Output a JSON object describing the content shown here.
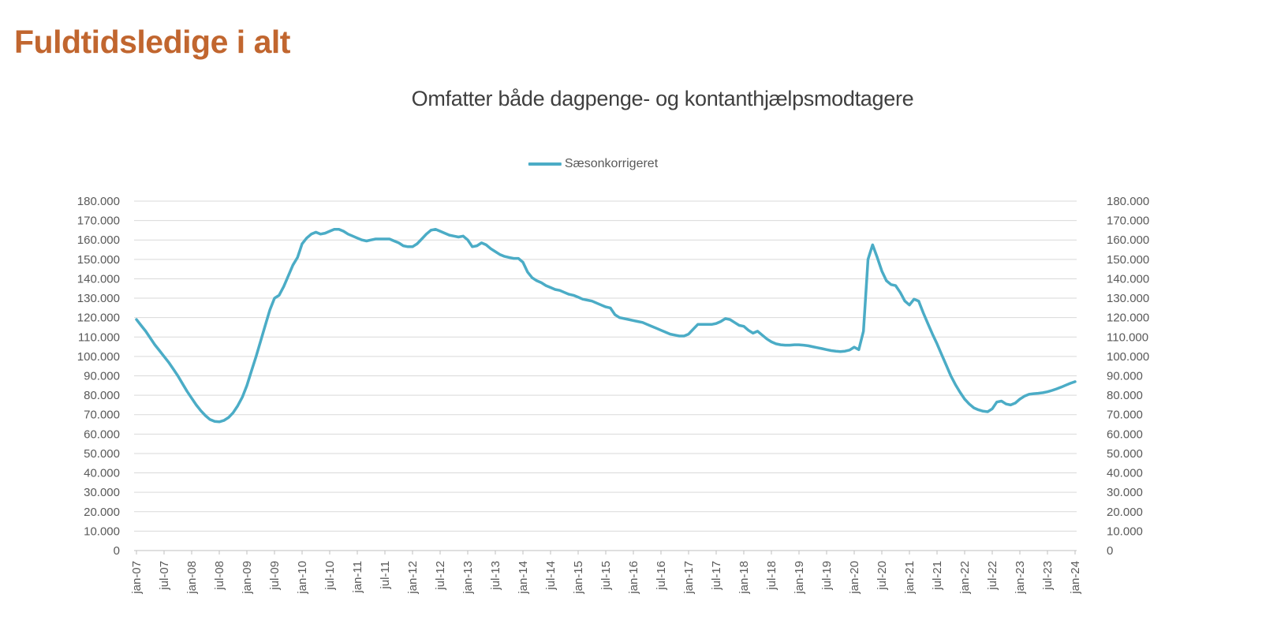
{
  "page": {
    "title": "Fuldtidsledige i alt"
  },
  "chart": {
    "subtitle": "Omfatter både dagpenge- og kontanthjælpsmodtagere",
    "legend_label": "Sæsonkorrigeret"
  },
  "colors": {
    "title": "#C1662F",
    "subtitle": "#3F3F3F",
    "series": "#4BACC6",
    "gridline": "#D9D9D9",
    "axis_line": "#BFBFBF",
    "tick_text": "#595959"
  },
  "chart_data": {
    "type": "line",
    "title": "Omfatter både dagpenge- og kontanthjælpsmodtagere",
    "grid": true,
    "legend_position": "top-center",
    "x_start": "jan-07",
    "x_end": "jan-24",
    "frequency": "monthly",
    "x_tick_every_months": 6,
    "x_tick_labels": [
      "jan-07",
      "jul-07",
      "jan-08",
      "jul-08",
      "jan-09",
      "jul-09",
      "jan-10",
      "jul-10",
      "jan-11",
      "jul-11",
      "jan-12",
      "jul-12",
      "jan-13",
      "jul-13",
      "jan-14",
      "jul-14",
      "jan-15",
      "jul-15",
      "jan-16",
      "jul-16",
      "jan-17",
      "jul-17",
      "jan-18",
      "jul-18",
      "jan-19",
      "jul-19",
      "jan-20",
      "jul-20",
      "jan-21",
      "jul-21",
      "jan-22",
      "jul-22",
      "jan-23",
      "jul-23",
      "jan-24"
    ],
    "y_axis": {
      "min": 0,
      "max": 180000,
      "step": 10000,
      "sides": [
        "left",
        "right"
      ],
      "tick_labels": [
        "180.000",
        "170.000",
        "160.000",
        "150.000",
        "140.000",
        "130.000",
        "120.000",
        "110.000",
        "100.000",
        "90.000",
        "80.000",
        "70.000",
        "60.000",
        "50.000",
        "40.000",
        "30.000",
        "20.000",
        "10.000",
        "0"
      ]
    },
    "series": [
      {
        "name": "Sæsonkorrigeret",
        "color": "#4BACC6",
        "values": [
          119000,
          116000,
          113000,
          109500,
          106000,
          103000,
          100000,
          97000,
          93500,
          90000,
          86000,
          82000,
          78500,
          75000,
          72000,
          69500,
          67500,
          66500,
          66300,
          67000,
          68500,
          71000,
          74500,
          79000,
          85000,
          92500,
          100000,
          108000,
          116000,
          124000,
          130000,
          131500,
          136000,
          141500,
          147000,
          151000,
          158000,
          161000,
          163000,
          164000,
          163000,
          163500,
          164500,
          165500,
          165500,
          164500,
          163000,
          162000,
          161000,
          160000,
          159500,
          160000,
          160500,
          160500,
          160500,
          160500,
          159500,
          158500,
          157000,
          156500,
          156500,
          158000,
          160500,
          163000,
          165000,
          165500,
          164500,
          163500,
          162500,
          162000,
          161500,
          162000,
          160000,
          156500,
          157000,
          158500,
          157500,
          155500,
          154000,
          152500,
          151500,
          151000,
          150500,
          150500,
          148500,
          143500,
          140500,
          139000,
          138000,
          136500,
          135500,
          134500,
          134000,
          133000,
          132000,
          131500,
          130500,
          129500,
          129000,
          128500,
          127500,
          126500,
          125500,
          125000,
          121500,
          120000,
          119500,
          119000,
          118500,
          118000,
          117500,
          116500,
          115500,
          114500,
          113500,
          112500,
          111500,
          111000,
          110500,
          110500,
          111500,
          114000,
          116500,
          116500,
          116500,
          116500,
          117000,
          118000,
          119500,
          119000,
          117500,
          116000,
          115500,
          113500,
          112000,
          113000,
          111000,
          109000,
          107500,
          106500,
          106000,
          105800,
          105800,
          106000,
          106000,
          105800,
          105500,
          105000,
          104500,
          104000,
          103500,
          103000,
          102700,
          102500,
          102700,
          103300,
          104800,
          103500,
          113000,
          150000,
          157500,
          151000,
          144000,
          139000,
          137000,
          136500,
          133000,
          128500,
          126500,
          129500,
          128500,
          122500,
          117000,
          111500,
          106500,
          101000,
          95500,
          90000,
          85500,
          81500,
          78000,
          75500,
          73500,
          72500,
          71800,
          71500,
          73000,
          76500,
          77000,
          75500,
          75000,
          76000,
          78000,
          79500,
          80500,
          80800,
          81000,
          81300,
          81800,
          82500,
          83300,
          84200,
          85200,
          86200,
          87000
        ]
      }
    ]
  }
}
